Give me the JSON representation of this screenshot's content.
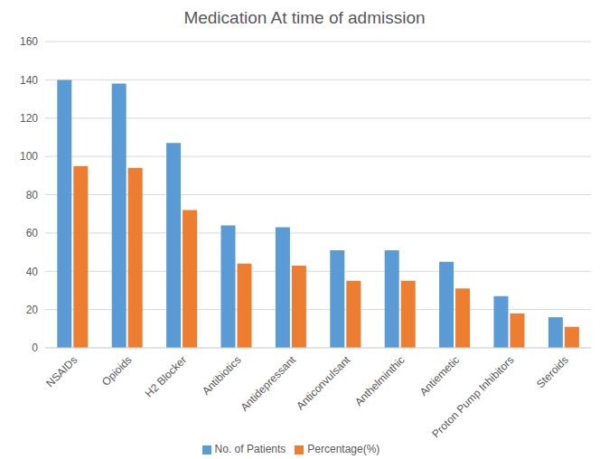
{
  "chart_data": {
    "type": "bar",
    "title": "Medication At time of admission",
    "categories": [
      "NSAIDs",
      "Opioids",
      "H2 Blocker",
      "Antibiotics",
      "Antidepressant",
      "Anticonvulsant",
      "Anthelminthic",
      "Antiemetic",
      "Proton Pump Inhibitors",
      "Steroids"
    ],
    "series": [
      {
        "name": "No. of  Patients",
        "color": "#5b9bd5",
        "values": [
          140,
          138,
          107,
          64,
          63,
          51,
          51,
          45,
          27,
          16
        ]
      },
      {
        "name": "Percentage(%)",
        "color": "#ed7d31",
        "values": [
          95,
          94,
          72,
          44,
          43,
          35,
          35,
          31,
          18,
          11
        ]
      }
    ],
    "ylim": [
      0,
      160
    ],
    "yticks": [
      0,
      20,
      40,
      60,
      80,
      100,
      120,
      140,
      160
    ],
    "grid": true,
    "legend": "bottom"
  }
}
